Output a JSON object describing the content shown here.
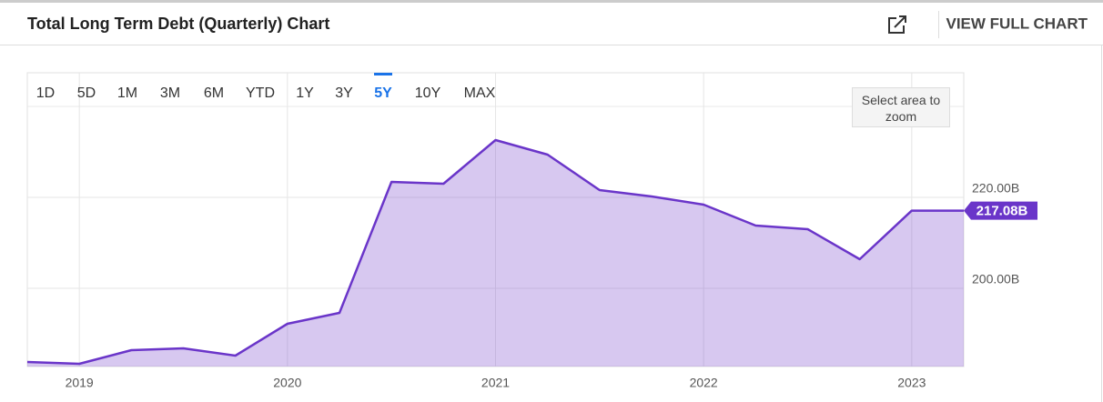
{
  "header": {
    "title": "Total Long Term Debt (Quarterly) Chart",
    "action": "VIEW FULL CHART"
  },
  "ranges": [
    "1D",
    "5D",
    "1M",
    "3M",
    "6M",
    "YTD",
    "1Y",
    "3Y",
    "5Y",
    "10Y",
    "MAX"
  ],
  "selected_range_index": 8,
  "zoom_hint": "Select area to zoom",
  "chart_data": {
    "type": "area",
    "x": [
      2018.75,
      2019,
      2019.25,
      2019.5,
      2019.75,
      2020,
      2020.25,
      2020.5,
      2020.75,
      2021,
      2021.25,
      2021.5,
      2021.75,
      2022,
      2022.25,
      2022.5,
      2022.75,
      2023,
      2023.25
    ],
    "series": [
      {
        "color": "#6a35c9",
        "values": [
          183.8,
          183.4,
          186.4,
          186.8,
          185.2,
          192.2,
          194.6,
          223.4,
          223.0,
          232.6,
          229.4,
          221.6,
          220.2,
          218.4,
          213.8,
          213.0,
          206.4,
          217.08,
          217.08
        ]
      }
    ],
    "current": {
      "value": 217.08,
      "label": "217.08B"
    },
    "xlim": [
      2018.75,
      2023.25
    ],
    "xticks": [
      2019,
      2020,
      2021,
      2022,
      2023
    ],
    "ylim": [
      182.8,
      247.4
    ],
    "yticks": [
      {
        "value": 200,
        "label": "200.00B"
      },
      {
        "value": 220,
        "label": "220.00B"
      }
    ],
    "grid": true
  }
}
